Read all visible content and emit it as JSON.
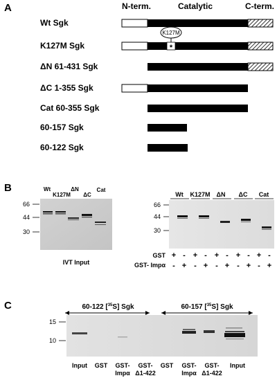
{
  "panel_a": {
    "letter": "A",
    "domains": {
      "n_term": "N-term.",
      "catalytic": "Catalytic",
      "c_term": "C-term."
    },
    "constructs": [
      {
        "label": "Wt Sgk"
      },
      {
        "label": "K127M Sgk",
        "mutation_label": "K127M",
        "mutation_mark": "*"
      },
      {
        "label": "ΔN 61-431 Sgk"
      },
      {
        "label": "ΔC 1-355 Sgk"
      },
      {
        "label": "Cat 60-355 Sgk"
      },
      {
        "label": "60-157 Sgk"
      },
      {
        "label": "60-122 Sgk"
      }
    ]
  },
  "panel_b": {
    "letter": "B",
    "ivt": {
      "lane_labels": [
        "Wt",
        "K127M",
        "ΔN",
        "ΔC",
        "Cat"
      ],
      "markers": [
        "66",
        "44",
        "30"
      ],
      "caption": "IVT Input"
    },
    "pulldown": {
      "group_labels": [
        "Wt",
        "K127M",
        "ΔN",
        "ΔC",
        "Cat"
      ],
      "markers": [
        "66",
        "44",
        "30"
      ],
      "row1_label": "GST",
      "row2_label": "GST- Impα",
      "row1_signs": [
        "+",
        "-",
        "+",
        "-",
        "+",
        "-",
        "+",
        "-",
        "+",
        "-"
      ],
      "row2_signs": [
        "-",
        "+",
        "-",
        "+",
        "-",
        "+",
        "-",
        "+",
        "-",
        "+"
      ]
    }
  },
  "panel_c": {
    "letter": "C",
    "left_header": "60-122 [35S] Sgk",
    "right_header": "60-157 [35S] Sgk",
    "markers": [
      "15",
      "10"
    ],
    "lanes": [
      "Input",
      "GST",
      "GST- Impα",
      "GST- Δ1-422",
      "GST",
      "GST- Impα",
      "GST- Δ1-422",
      "Input"
    ]
  }
}
